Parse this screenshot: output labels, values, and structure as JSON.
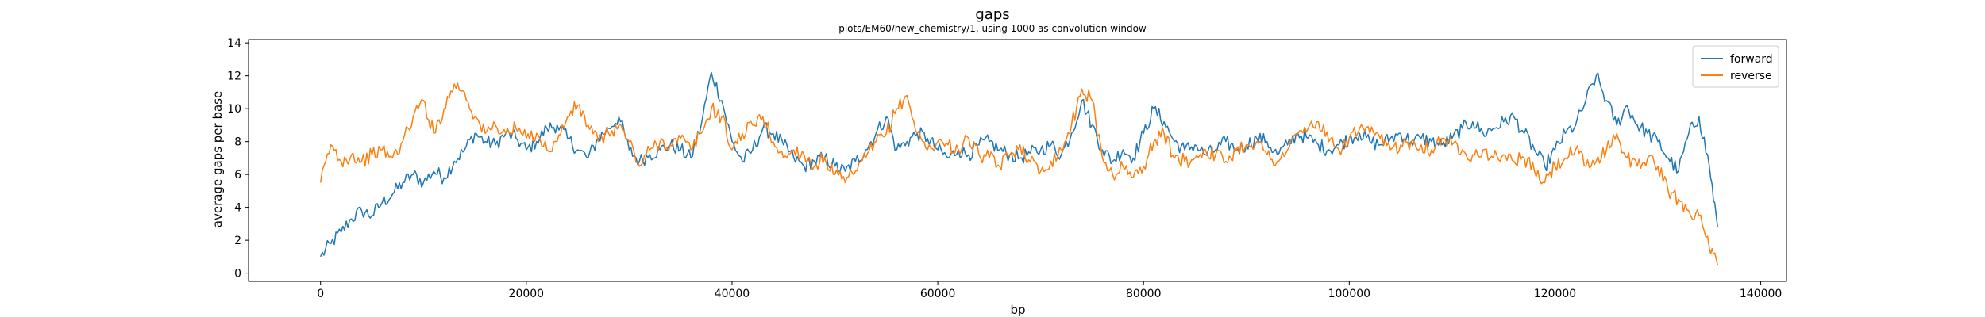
{
  "chart_data": {
    "type": "line",
    "title": "gaps",
    "subtitle": "plots/EM60/new_chemistry/1, using 1000 as convolution window",
    "xlabel": "bp",
    "ylabel": "average gaps per base",
    "xlim": [
      -7000,
      142500
    ],
    "ylim": [
      -0.5,
      14.2
    ],
    "xticks": [
      0,
      20000,
      40000,
      60000,
      80000,
      100000,
      120000,
      140000
    ],
    "xtick_labels": [
      "0",
      "20000",
      "40000",
      "60000",
      "80000",
      "100000",
      "120000",
      "140000"
    ],
    "yticks": [
      0,
      2,
      4,
      6,
      8,
      10,
      12,
      14
    ],
    "ytick_labels": [
      "0",
      "2",
      "4",
      "6",
      "8",
      "10",
      "12",
      "14"
    ],
    "grid": false,
    "legend": {
      "placement": "top-right",
      "entries": [
        "forward",
        "reverse"
      ]
    },
    "series": [
      {
        "name": "forward",
        "color": "#1f77b4",
        "x": [
          0,
          1000,
          2000,
          3000,
          4000,
          5000,
          6000,
          7000,
          8000,
          9000,
          10000,
          11000,
          12000,
          13000,
          14000,
          15000,
          16000,
          17000,
          18000,
          19000,
          20000,
          21000,
          22000,
          23000,
          24000,
          25000,
          26000,
          27000,
          28000,
          29000,
          30000,
          31000,
          32000,
          33000,
          34000,
          35000,
          36000,
          37000,
          38000,
          39000,
          40000,
          41000,
          42000,
          43000,
          44000,
          45000,
          46000,
          47000,
          48000,
          49000,
          50000,
          51000,
          52000,
          53000,
          54000,
          55000,
          56000,
          57000,
          58000,
          59000,
          60000,
          61000,
          62000,
          63000,
          64000,
          65000,
          66000,
          67000,
          68000,
          69000,
          70000,
          71000,
          72000,
          73000,
          74000,
          75000,
          76000,
          77000,
          78000,
          79000,
          80000,
          81000,
          82000,
          83000,
          84000,
          85000,
          86000,
          87000,
          88000,
          89000,
          90000,
          91000,
          92000,
          93000,
          94000,
          95000,
          96000,
          97000,
          98000,
          99000,
          100000,
          101000,
          102000,
          103000,
          104000,
          105000,
          106000,
          107000,
          108000,
          109000,
          110000,
          111000,
          112000,
          113000,
          114000,
          115000,
          116000,
          117000,
          118000,
          119000,
          120000,
          121000,
          122000,
          123000,
          124000,
          125000,
          126000,
          127000,
          128000,
          129000,
          130000,
          131000,
          132000,
          133000,
          134000,
          135000,
          135800
        ],
        "y": [
          1.0,
          1.8,
          2.5,
          3.3,
          3.8,
          3.5,
          4.3,
          4.8,
          5.5,
          6.0,
          5.5,
          6.2,
          5.8,
          6.8,
          7.5,
          8.5,
          8.0,
          7.8,
          8.5,
          8.2,
          7.5,
          8.0,
          8.8,
          9.0,
          8.2,
          7.5,
          7.0,
          8.2,
          8.8,
          9.5,
          7.5,
          6.8,
          7.2,
          7.5,
          7.8,
          7.5,
          7.0,
          9.0,
          12.2,
          10.5,
          8.0,
          6.8,
          7.5,
          8.8,
          8.5,
          7.8,
          7.0,
          6.5,
          6.8,
          7.0,
          6.5,
          6.2,
          6.8,
          7.5,
          8.5,
          9.5,
          7.5,
          8.0,
          8.5,
          8.2,
          7.5,
          7.0,
          7.5,
          7.2,
          7.8,
          8.0,
          7.5,
          7.2,
          7.0,
          7.3,
          7.5,
          7.8,
          7.2,
          8.5,
          10.5,
          9.0,
          7.5,
          6.8,
          7.5,
          7.0,
          8.5,
          10.0,
          9.2,
          8.0,
          7.5,
          7.8,
          7.2,
          7.5,
          8.0,
          7.5,
          7.8,
          8.2,
          8.0,
          7.2,
          7.8,
          8.5,
          8.2,
          7.8,
          7.5,
          7.8,
          8.2,
          8.5,
          8.0,
          7.8,
          8.2,
          8.5,
          8.0,
          8.2,
          8.0,
          7.8,
          8.2,
          8.8,
          9.2,
          8.5,
          8.8,
          9.2,
          9.5,
          8.5,
          7.5,
          6.5,
          7.5,
          8.5,
          9.0,
          10.5,
          12.0,
          10.5,
          9.0,
          10.2,
          9.0,
          8.5,
          8.0,
          7.0,
          6.2,
          8.5,
          9.5,
          6.5,
          2.8
        ]
      },
      {
        "name": "reverse",
        "color": "#ff7f0e",
        "x": [
          0,
          1000,
          2000,
          3000,
          4000,
          5000,
          6000,
          7000,
          8000,
          9000,
          10000,
          11000,
          12000,
          13000,
          14000,
          15000,
          16000,
          17000,
          18000,
          19000,
          20000,
          21000,
          22000,
          23000,
          24000,
          25000,
          26000,
          27000,
          28000,
          29000,
          30000,
          31000,
          32000,
          33000,
          34000,
          35000,
          36000,
          37000,
          38000,
          39000,
          40000,
          41000,
          42000,
          43000,
          44000,
          45000,
          46000,
          47000,
          48000,
          49000,
          50000,
          51000,
          52000,
          53000,
          54000,
          55000,
          56000,
          57000,
          58000,
          59000,
          60000,
          61000,
          62000,
          63000,
          64000,
          65000,
          66000,
          67000,
          68000,
          69000,
          70000,
          71000,
          72000,
          73000,
          74000,
          75000,
          76000,
          77000,
          78000,
          79000,
          80000,
          81000,
          82000,
          83000,
          84000,
          85000,
          86000,
          87000,
          88000,
          89000,
          90000,
          91000,
          92000,
          93000,
          94000,
          95000,
          96000,
          97000,
          98000,
          99000,
          100000,
          101000,
          102000,
          103000,
          104000,
          105000,
          106000,
          107000,
          108000,
          109000,
          110000,
          111000,
          112000,
          113000,
          114000,
          115000,
          116000,
          117000,
          118000,
          119000,
          120000,
          121000,
          122000,
          123000,
          124000,
          125000,
          126000,
          127000,
          128000,
          129000,
          130000,
          131000,
          132000,
          133000,
          134000,
          135000,
          135800
        ],
        "y": [
          5.5,
          7.8,
          6.8,
          7.2,
          6.8,
          7.2,
          7.5,
          7.0,
          8.0,
          9.5,
          10.5,
          8.5,
          10.0,
          11.5,
          11.0,
          9.5,
          8.5,
          9.0,
          8.5,
          8.8,
          8.2,
          8.5,
          7.5,
          8.0,
          9.5,
          10.2,
          9.0,
          8.0,
          8.5,
          9.0,
          8.0,
          6.5,
          7.5,
          8.0,
          7.8,
          8.2,
          7.5,
          8.5,
          10.0,
          9.5,
          7.5,
          8.5,
          9.0,
          9.5,
          8.0,
          7.0,
          7.5,
          7.2,
          6.5,
          7.0,
          6.0,
          5.5,
          6.2,
          7.0,
          8.0,
          8.5,
          10.0,
          10.8,
          8.5,
          7.5,
          8.0,
          7.8,
          7.5,
          8.2,
          7.2,
          7.0,
          6.5,
          7.2,
          7.8,
          6.8,
          6.2,
          6.8,
          7.5,
          9.0,
          11.2,
          10.5,
          7.0,
          6.0,
          6.5,
          5.8,
          6.5,
          8.0,
          8.5,
          7.0,
          6.8,
          7.0,
          7.5,
          7.2,
          6.8,
          7.5,
          7.8,
          8.0,
          7.2,
          6.8,
          7.5,
          8.5,
          8.8,
          9.2,
          8.0,
          7.5,
          8.2,
          8.8,
          8.5,
          8.2,
          7.5,
          7.8,
          8.0,
          7.8,
          7.5,
          8.2,
          7.8,
          7.5,
          7.2,
          7.5,
          7.0,
          7.2,
          6.8,
          7.0,
          6.2,
          5.5,
          6.5,
          7.0,
          7.5,
          6.5,
          6.8,
          7.5,
          8.5,
          7.0,
          6.5,
          7.0,
          6.5,
          5.0,
          4.5,
          3.8,
          3.5,
          1.5,
          0.5
        ]
      }
    ]
  }
}
